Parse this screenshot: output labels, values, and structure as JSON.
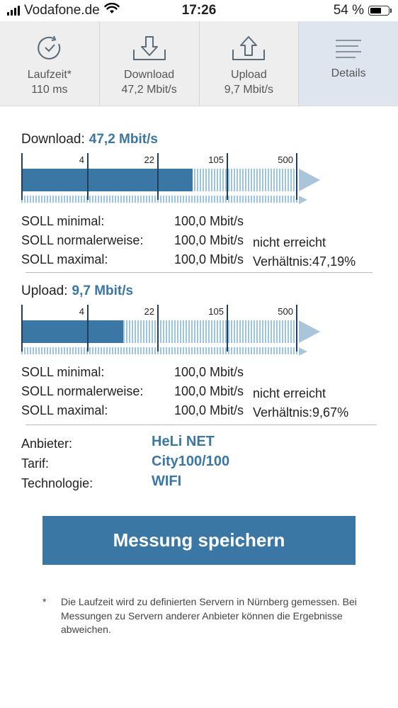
{
  "status_bar": {
    "carrier": "Vodafone.de",
    "time": "17:26",
    "battery_percent": "54 %",
    "battery_level": 0.54
  },
  "tabs": [
    {
      "label": "Laufzeit*",
      "value": "110 ms",
      "icon": "stopwatch-icon"
    },
    {
      "label": "Download",
      "value": "47,2 Mbit/s",
      "icon": "download-icon"
    },
    {
      "label": "Upload",
      "value": "9,7 Mbit/s",
      "icon": "upload-icon"
    },
    {
      "label": "Details",
      "value": "",
      "icon": "menu-icon"
    }
  ],
  "download": {
    "title": "Download:",
    "value": "47,2 Mbit/s",
    "scale": [
      "4",
      "22",
      "105",
      "500"
    ],
    "fill_fraction": 0.62,
    "soll": [
      {
        "label": "SOLL minimal:",
        "value": "100,0 Mbit/s",
        "extra": ""
      },
      {
        "label": "SOLL normalerweise:",
        "value": "100,0 Mbit/s",
        "extra": "nicht erreicht"
      },
      {
        "label": "SOLL maximal:",
        "value": "100,0 Mbit/s",
        "extra": "Verhältnis:47,19%"
      }
    ]
  },
  "upload": {
    "title": "Upload:",
    "value": "9,7 Mbit/s",
    "scale": [
      "4",
      "22",
      "105",
      "500"
    ],
    "fill_fraction": 0.368,
    "soll": [
      {
        "label": "SOLL minimal:",
        "value": "100,0 Mbit/s",
        "extra": ""
      },
      {
        "label": "SOLL normalerweise:",
        "value": "100,0 Mbit/s",
        "extra": "nicht erreicht"
      },
      {
        "label": "SOLL maximal:",
        "value": "100,0 Mbit/s",
        "extra": "Verhältnis:9,67%"
      }
    ]
  },
  "info": [
    {
      "label": "Anbieter:",
      "value": "HeLi NET"
    },
    {
      "label": "Tarif:",
      "value": "City100/100"
    },
    {
      "label": "Technologie:",
      "value": "WIFI"
    }
  ],
  "save_button": "Messung speichern",
  "footnote": {
    "marker": "*",
    "text": "Die Laufzeit wird zu definierten Servern in Nürnberg gemessen. Bei Messungen zu Servern anderer Anbieter können die Ergebnisse abweichen."
  },
  "colors": {
    "accent": "#3a77a4",
    "hatch": "#9ec4dc",
    "arrow": "#a9c5da",
    "tick": "#1f3f5f",
    "active_tab": "#dfe5ee"
  }
}
